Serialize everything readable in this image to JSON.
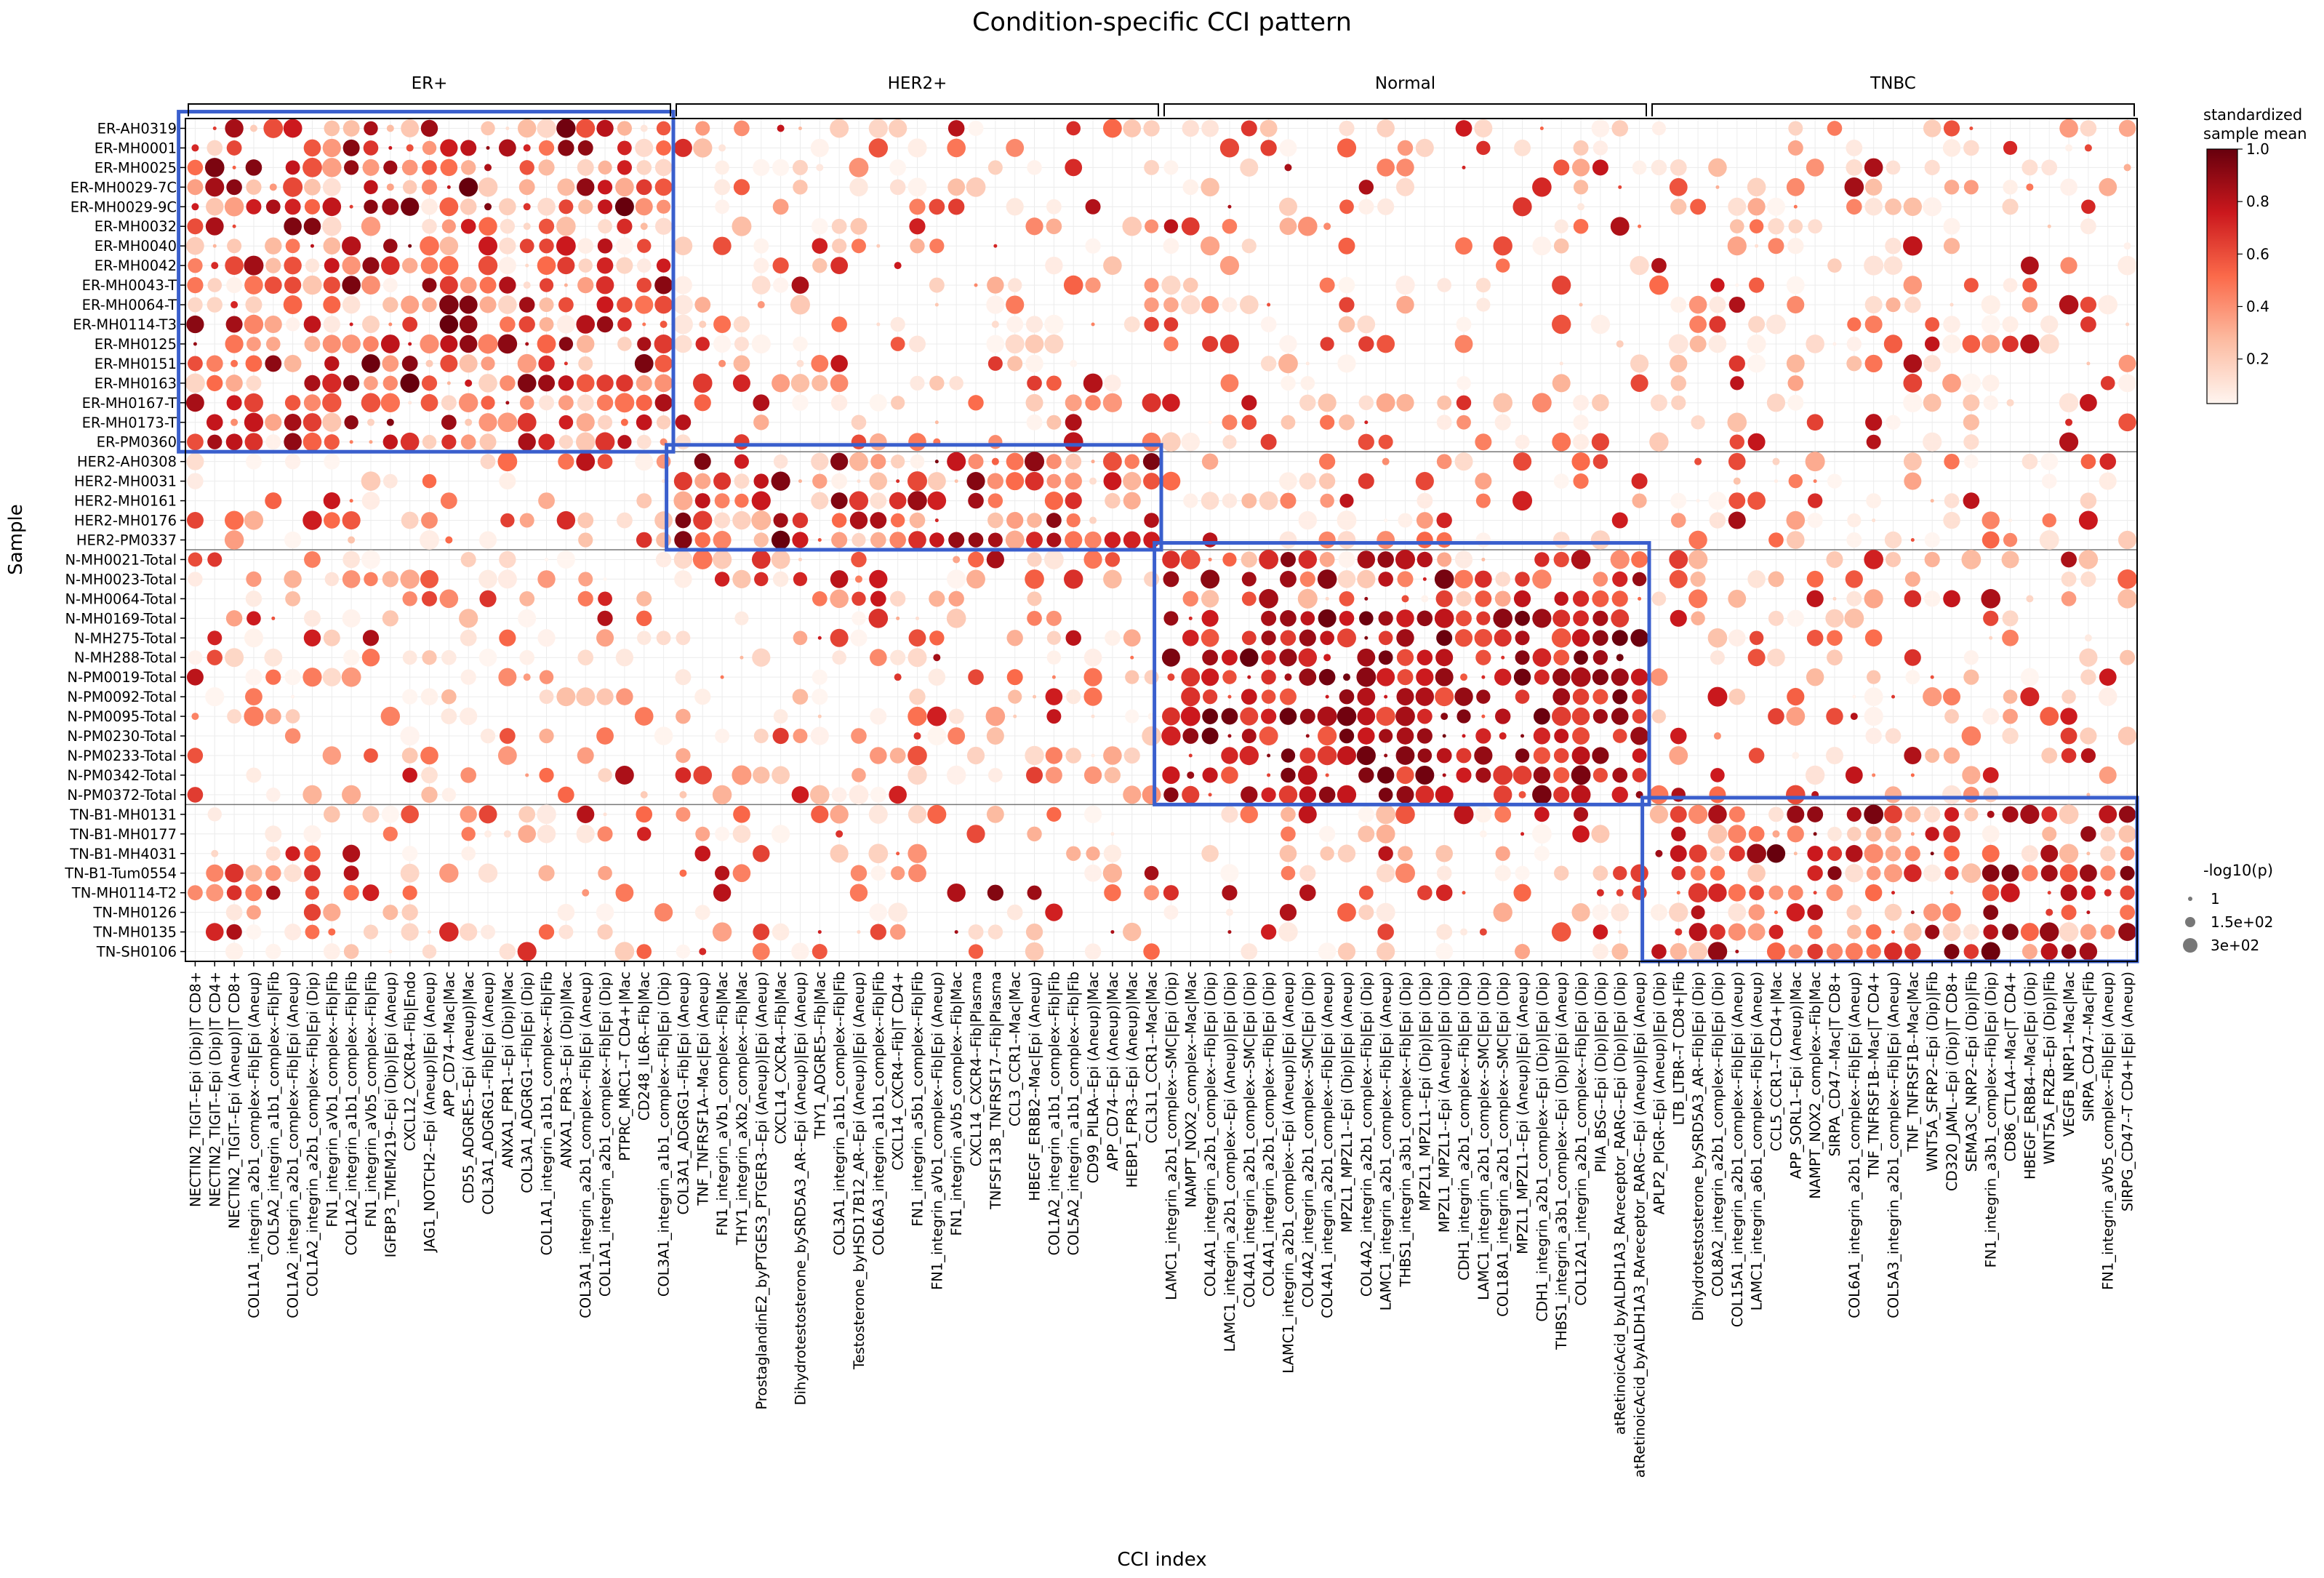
{
  "chart_data": {
    "type": "dot-heatmap",
    "title": "Condition-specific CCI pattern",
    "xlabel": "CCI index",
    "ylabel": "Sample",
    "groups": [
      {
        "name": "ER+",
        "count": 25
      },
      {
        "name": "HER2+",
        "count": 25
      },
      {
        "name": "Normal",
        "count": 25
      },
      {
        "name": "TNBC",
        "count": 25
      }
    ],
    "x_tick_labels": [
      "NECTIN2_TIGIT--Epi (Dip)|T CD8+",
      "NECTIN2_TIGIT--Epi (Dip)|T CD4+",
      "NECTIN2_TIGIT--Epi (Aneup)|T CD8+",
      "COL1A1_integrin_a2b1_complex--Fib|Epi (Aneup)",
      "COL5A2_integrin_a1b1_complex--Fib|Fib",
      "COL1A2_integrin_a2b1_complex--Fib|Epi (Aneup)",
      "COL1A2_integrin_a2b1_complex--Fib|Epi (Dip)",
      "FN1_integrin_aVb1_complex--Fib|Fib",
      "COL1A2_integrin_a1b1_complex--Fib|Fib",
      "FN1_integrin_aVb5_complex--Fib|Fib",
      "IGFBP3_TMEM219--Epi (Dip)|Epi (Aneup)",
      "CXCL12_CXCR4--Fib|Endo",
      "JAG1_NOTCH2--Epi (Aneup)|Epi (Aneup)",
      "APP_CD74--Mac|Mac",
      "CD55_ADGRE5--Epi (Aneup)|Mac",
      "COL3A1_ADGRG1--Fib|Epi (Aneup)",
      "ANXA1_FPR1--Epi (Dip)|Mac",
      "COL3A1_ADGRG1--Fib|Epi (Dip)",
      "COL1A1_integrin_a1b1_complex--Fib|Fib",
      "ANXA1_FPR3--Epi (Dip)|Mac",
      "COL3A1_integrin_a2b1_complex--Fib|Epi (Aneup)",
      "COL1A1_integrin_a2b1_complex--Fib|Epi (Dip)",
      "PTPRC_MRC1--T CD4+|Mac",
      "CD248_IL6R--Fib|Mac",
      "COL3A1_integrin_a1b1_complex--Fib|Epi (Dip)",
      "COL3A1_ADGRG1--Fib|Epi (Aneup)",
      "TNF_TNFRSF1A--Mac|Epi (Aneup)",
      "FN1_integrin_aVb1_complex--Fib|Mac",
      "THY1_integrin_aXb2_complex--Fib|Mac",
      "ProstaglandinE2_byPTGES3_PTGER3--Epi (Aneup)|Epi (Aneup)",
      "CXCL14_CXCR4--Fib|Mac",
      "Dihydrotestosterone_bySRD5A3_AR--Epi (Aneup)|Epi (Aneup)",
      "THY1_ADGRE5--Fib|Mac",
      "COL3A1_integrin_a1b1_complex--Fib|Fib",
      "Testosterone_byHSD17B12_AR--Epi (Aneup)|Epi (Aneup)",
      "COL6A3_integrin_a1b1_complex--Fib|Fib",
      "CXCL14_CXCR4--Fib|T CD4+",
      "FN1_integrin_a5b1_complex--Fib|Fib",
      "FN1_integrin_aVb1_complex--Fib|Epi (Aneup)",
      "FN1_integrin_aVb5_complex--Fib|Mac",
      "CXCL14_CXCR4--Fib|Plasma",
      "TNFSF13B_TNFRSF17--Fib|Plasma",
      "CCL3_CCR1--Mac|Mac",
      "HBEGF_ERBB2--Mac|Epi (Aneup)",
      "COL1A2_integrin_a1b1_complex--Fib|Fib",
      "COL5A2_integrin_a1b1_complex--Fib|Fib",
      "CD99_PILRA--Epi (Aneup)|Mac",
      "APP_CD74--Epi (Aneup)|Mac",
      "HEBP1_FPR3--Epi (Aneup)|Mac",
      "CCL3L1_CCR1--Mac|Mac",
      "LAMC1_integrin_a2b1_complex--SMC|Epi (Dip)",
      "NAMPT_NOX2_complex--Mac|Mac",
      "COL4A1_integrin_a2b1_complex--Fib|Epi (Dip)",
      "LAMC1_integrin_a2b1_complex--Epi (Aneup)|Epi (Dip)",
      "COL4A1_integrin_a2b1_complex--SMC|Epi (Dip)",
      "COL4A1_integrin_a2b1_complex--Fib|Epi (Dip)",
      "LAMC1_integrin_a2b1_complex--Epi (Aneup)|Epi (Aneup)",
      "COL4A2_integrin_a2b1_complex--SMC|Epi (Dip)",
      "COL4A1_integrin_a2b1_complex--Fib|Epi (Aneup)",
      "MPZL1_MPZL1--Epi (Dip)|Epi (Aneup)",
      "COL4A2_integrin_a2b1_complex--Fib|Epi (Dip)",
      "LAMC1_integrin_a2b1_complex--Fib|Epi (Aneup)",
      "THBS1_integrin_a3b1_complex--Fib|Epi (Dip)",
      "MPZL1_MPZL1--Epi (Dip)|Epi (Dip)",
      "MPZL1_MPZL1--Epi (Aneup)|Epi (Dip)",
      "CDH1_integrin_a2b1_complex--Fib|Epi (Dip)",
      "LAMC1_integrin_a2b1_complex--SMC|Epi (Dip)",
      "COL18A1_integrin_a2b1_complex--SMC|Epi (Dip)",
      "MPZL1_MPZL1--Epi (Aneup)|Epi (Aneup)",
      "CDH1_integrin_a2b1_complex--Epi (Dip)|Epi (Dip)",
      "THBS1_integrin_a3b1_complex--Epi (Dip)|Epi (Aneup)",
      "COL12A1_integrin_a2b1_complex--Fib|Epi (Dip)",
      "PIIA_BSG--Epi (Dip)|Epi (Dip)",
      "atRetinoicAcid_byALDH1A3_RAreceptor_RARG--Epi (Dip)|Epi (Dip)",
      "atRetinoicAcid_byALDH1A3_RAreceptor_RARG--Epi (Aneup)|Epi (Aneup)",
      "APLP2_PIGR--Epi (Aneup)|Epi (Dip)",
      "LTB_LTBR--T CD8+|Fib",
      "Dihydrotestosterone_bySRD5A3_AR--Fib|Epi (Dip)",
      "COL8A2_integrin_a2b1_complex--Fib|Epi (Dip)",
      "COL15A1_integrin_a2b1_complex--Fib|Epi (Aneup)",
      "LAMC1_integrin_a6b1_complex--Fib|Epi (Aneup)",
      "CCL5_CCR1--T CD4+|Mac",
      "APP_SORL1--Epi (Aneup)|Mac",
      "NAMPT_NOX2_complex--Fib|Mac",
      "SIRPA_CD47--Mac|T CD8+",
      "COL6A1_integrin_a2b1_complex--Fib|Epi (Aneup)",
      "TNF_TNFRSF1B--Mac|T CD4+",
      "COL5A3_integrin_a2b1_complex--Fib|Epi (Aneup)",
      "TNF_TNFRSF1B--Mac|Mac",
      "WNT5A_SFRP2--Epi (Dip)|Fib",
      "CD320_JAML--Epi (Dip)|T CD8+",
      "SEMA3C_NRP2--Epi (Dip)|Fib",
      "FN1_integrin_a3b1_complex--Fib|Epi (Dip)",
      "CD86_CTLA4--Mac|T CD4+",
      "HBEGF_ERBB4--Mac|Epi (Dip)",
      "WNT5A_FRZB--Epi (Dip)|Fib",
      "VEGFB_NRP1--Mac|Mac",
      "SIRPA_CD47--Mac|Fib",
      "FN1_integrin_aVb5_complex--Fib|Epi (Aneup)",
      "SIRPG_CD47--T CD4+|Epi (Aneup)"
    ],
    "rows": [
      {
        "name": "ER-AH0319",
        "group": "ER+"
      },
      {
        "name": "ER-MH0001",
        "group": "ER+"
      },
      {
        "name": "ER-MH0025",
        "group": "ER+"
      },
      {
        "name": "ER-MH0029-7C",
        "group": "ER+"
      },
      {
        "name": "ER-MH0029-9C",
        "group": "ER+"
      },
      {
        "name": "ER-MH0032",
        "group": "ER+"
      },
      {
        "name": "ER-MH0040",
        "group": "ER+"
      },
      {
        "name": "ER-MH0042",
        "group": "ER+"
      },
      {
        "name": "ER-MH0043-T",
        "group": "ER+"
      },
      {
        "name": "ER-MH0064-T",
        "group": "ER+"
      },
      {
        "name": "ER-MH0114-T3",
        "group": "ER+"
      },
      {
        "name": "ER-MH0125",
        "group": "ER+"
      },
      {
        "name": "ER-MH0151",
        "group": "ER+"
      },
      {
        "name": "ER-MH0163",
        "group": "ER+"
      },
      {
        "name": "ER-MH0167-T",
        "group": "ER+"
      },
      {
        "name": "ER-MH0173-T",
        "group": "ER+"
      },
      {
        "name": "ER-PM0360",
        "group": "ER+"
      },
      {
        "name": "HER2-AH0308",
        "group": "HER2+"
      },
      {
        "name": "HER2-MH0031",
        "group": "HER2+"
      },
      {
        "name": "HER2-MH0161",
        "group": "HER2+"
      },
      {
        "name": "HER2-MH0176",
        "group": "HER2+"
      },
      {
        "name": "HER2-PM0337",
        "group": "HER2+"
      },
      {
        "name": "N-MH0021-Total",
        "group": "Normal"
      },
      {
        "name": "N-MH0023-Total",
        "group": "Normal"
      },
      {
        "name": "N-MH0064-Total",
        "group": "Normal"
      },
      {
        "name": "N-MH0169-Total",
        "group": "Normal"
      },
      {
        "name": "N-MH275-Total",
        "group": "Normal"
      },
      {
        "name": "N-MH288-Total",
        "group": "Normal"
      },
      {
        "name": "N-PM0019-Total",
        "group": "Normal"
      },
      {
        "name": "N-PM0092-Total",
        "group": "Normal"
      },
      {
        "name": "N-PM0095-Total",
        "group": "Normal"
      },
      {
        "name": "N-PM0230-Total",
        "group": "Normal"
      },
      {
        "name": "N-PM0233-Total",
        "group": "Normal"
      },
      {
        "name": "N-PM0342-Total",
        "group": "Normal"
      },
      {
        "name": "N-PM0372-Total",
        "group": "Normal"
      },
      {
        "name": "TN-B1-MH0131",
        "group": "TNBC"
      },
      {
        "name": "TN-B1-MH0177",
        "group": "TNBC"
      },
      {
        "name": "TN-B1-MH4031",
        "group": "TNBC"
      },
      {
        "name": "TN-B1-Tum0554",
        "group": "TNBC"
      },
      {
        "name": "TN-MH0114-T2",
        "group": "TNBC"
      },
      {
        "name": "TN-MH0126",
        "group": "TNBC"
      },
      {
        "name": "TN-MH0135",
        "group": "TNBC"
      },
      {
        "name": "TN-SH0106",
        "group": "TNBC"
      }
    ],
    "color_legend": {
      "title_line1": "standardized",
      "title_line2": "sample mean",
      "min": 0.0,
      "max": 1.0,
      "ticks": [
        "0.2",
        "0.4",
        "0.6",
        "0.8",
        "1.0"
      ],
      "colors": [
        "#fff5f0",
        "#fcbba1",
        "#fb6a4a",
        "#cb181d",
        "#67000d"
      ]
    },
    "size_legend": {
      "title": "-log10(p)",
      "entries": [
        "1",
        "1.5e+02",
        "3e+02"
      ]
    },
    "highlight_color": "#3a5fcd",
    "grid": true
  }
}
